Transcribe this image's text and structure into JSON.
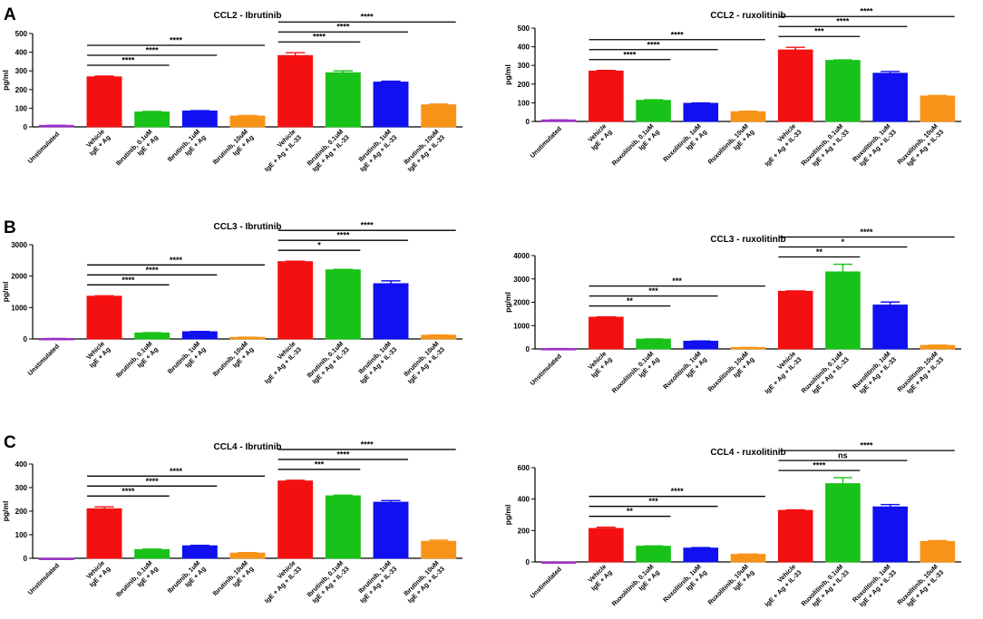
{
  "figure": {
    "panel_labels": [
      "A",
      "B",
      "C"
    ],
    "colors": {
      "purple": "#9b30c8",
      "red": "#f41010",
      "green": "#19c219",
      "blue": "#1010f0",
      "orange": "#f79418"
    }
  },
  "chart_data": [
    {
      "id": "ccl2-ibr",
      "type": "bar",
      "title": "CCL2 - Ibrutinib",
      "ylabel": "pg/ml",
      "ylim": [
        0,
        500
      ],
      "yticks": [
        0,
        100,
        200,
        300,
        400,
        500
      ],
      "categories": [
        [
          "Unstimulated"
        ],
        [
          "Vehicle",
          "IgE + Ag"
        ],
        [
          "Ibrutinib, 0.1uM",
          "IgE + Ag"
        ],
        [
          "Ibrutinib, 1uM",
          "IgE + Ag"
        ],
        [
          "Ibrutinib, 10uM",
          "IgE + Ag"
        ],
        [
          "Vehicle",
          "IgE + Ag + IL-33"
        ],
        [
          "Ibrutinib, 0.1uM",
          "IgE + Ag + IL-33"
        ],
        [
          "Ibrutinib, 1uM",
          "IgE + Ag + IL-33"
        ],
        [
          "Ibrutinib, 10uM",
          "IgE + Ag + IL-33"
        ]
      ],
      "values": [
        8,
        268,
        80,
        85,
        58,
        382,
        290,
        240,
        118
      ],
      "errors": [
        1,
        4,
        3,
        2,
        3,
        15,
        10,
        5,
        4
      ],
      "bar_colors": [
        "#9b30c8",
        "#f41010",
        "#19c219",
        "#1010f0",
        "#f79418",
        "#f41010",
        "#19c219",
        "#1010f0",
        "#f79418"
      ],
      "comparisons": [
        {
          "from": 1,
          "to": 2,
          "label": "****"
        },
        {
          "from": 1,
          "to": 3,
          "label": "****"
        },
        {
          "from": 1,
          "to": 4,
          "label": "****"
        },
        {
          "from": 5,
          "to": 6,
          "label": "****"
        },
        {
          "from": 5,
          "to": 7,
          "label": "****"
        },
        {
          "from": 5,
          "to": 8,
          "label": "****"
        }
      ]
    },
    {
      "id": "ccl2-rux",
      "type": "bar",
      "title": "CCL2 - ruxolitinib",
      "ylabel": "pg/ml",
      "ylim": [
        0,
        500
      ],
      "yticks": [
        0,
        100,
        200,
        300,
        400,
        500
      ],
      "categories": [
        [
          "Unstimulated"
        ],
        [
          "Vehicle",
          "IgE + Ag"
        ],
        [
          "Ruxolitinib, 0.1uM",
          "IgE + Ag"
        ],
        [
          "Ruxolitinib, 1uM",
          "IgE + Ag"
        ],
        [
          "Ruxolitinib, 10uM",
          "IgE + Ag"
        ],
        [
          "Vehicle",
          "IgE + Ag + IL-33"
        ],
        [
          "Ruxolitinib, 0.1uM",
          "IgE + Ag + IL-33"
        ],
        [
          "Ruxolitinib, 1uM",
          "IgE + Ag + IL-33"
        ],
        [
          "Ruxolitinib, 10uM",
          "IgE + Ag + IL-33"
        ]
      ],
      "values": [
        8,
        270,
        113,
        97,
        52,
        383,
        327,
        258,
        136
      ],
      "errors": [
        1,
        3,
        3,
        2,
        3,
        14,
        3,
        10,
        3
      ],
      "bar_colors": [
        "#9b30c8",
        "#f41010",
        "#19c219",
        "#1010f0",
        "#f79418",
        "#f41010",
        "#19c219",
        "#1010f0",
        "#f79418"
      ],
      "comparisons": [
        {
          "from": 1,
          "to": 2,
          "label": "****"
        },
        {
          "from": 1,
          "to": 3,
          "label": "****"
        },
        {
          "from": 1,
          "to": 4,
          "label": "****"
        },
        {
          "from": 5,
          "to": 6,
          "label": "***"
        },
        {
          "from": 5,
          "to": 7,
          "label": "****"
        },
        {
          "from": 5,
          "to": 8,
          "label": "****"
        }
      ]
    },
    {
      "id": "ccl3-ibr",
      "type": "bar",
      "title": "CCL3 - Ibrutinib",
      "ylabel": "pg/ml",
      "ylim": [
        0,
        3000
      ],
      "yticks": [
        0,
        1000,
        2000,
        3000
      ],
      "categories": [
        [
          "Unstimulated"
        ],
        [
          "Vehicle",
          "IgE + Ag"
        ],
        [
          "Ibrutinib, 0.1uM",
          "IgE + Ag"
        ],
        [
          "Ibrutinib, 1uM",
          "IgE + Ag"
        ],
        [
          "Ibrutinib, 10uM",
          "IgE + Ag"
        ],
        [
          "Vehicle",
          "IgE + Ag + IL-33"
        ],
        [
          "Ibrutinib, 0.1uM",
          "IgE + Ag + IL-33"
        ],
        [
          "Ibrutinib, 1uM",
          "IgE + Ag + IL-33"
        ],
        [
          "Ibrutinib, 10uM",
          "IgE + Ag + IL-33"
        ]
      ],
      "values": [
        15,
        1360,
        190,
        230,
        50,
        2460,
        2200,
        1760,
        120
      ],
      "errors": [
        2,
        15,
        8,
        8,
        5,
        15,
        15,
        90,
        8
      ],
      "bar_colors": [
        "#9b30c8",
        "#f41010",
        "#19c219",
        "#1010f0",
        "#f79418",
        "#f41010",
        "#19c219",
        "#1010f0",
        "#f79418"
      ],
      "comparisons": [
        {
          "from": 1,
          "to": 2,
          "label": "****"
        },
        {
          "from": 1,
          "to": 3,
          "label": "****"
        },
        {
          "from": 1,
          "to": 4,
          "label": "****"
        },
        {
          "from": 5,
          "to": 6,
          "label": "*"
        },
        {
          "from": 5,
          "to": 7,
          "label": "****"
        },
        {
          "from": 5,
          "to": 8,
          "label": "****"
        }
      ]
    },
    {
      "id": "ccl3-rux",
      "type": "bar",
      "title": "CCL3 - ruxolitinib",
      "ylabel": "pg/ml",
      "ylim": [
        0,
        4000
      ],
      "yticks": [
        0,
        1000,
        2000,
        3000,
        4000
      ],
      "categories": [
        [
          "Unstimulated"
        ],
        [
          "Vehicle",
          "IgE + Ag"
        ],
        [
          "Ruxolitinib, 0.1uM",
          "IgE + Ag"
        ],
        [
          "Ruxolitinib, 1uM",
          "IgE + Ag"
        ],
        [
          "Ruxolitinib, 10uM",
          "IgE + Ag"
        ],
        [
          "Vehicle",
          "IgE + Ag + IL-33"
        ],
        [
          "Ruxolitinib, 0.1uM",
          "IgE + Ag + IL-33"
        ],
        [
          "Ruxolitinib, 1uM",
          "IgE + Ag + IL-33"
        ],
        [
          "Ruxolitinib, 10uM",
          "IgE + Ag + IL-33"
        ]
      ],
      "values": [
        15,
        1360,
        420,
        330,
        60,
        2470,
        3300,
        1880,
        150
      ],
      "errors": [
        2,
        15,
        10,
        10,
        5,
        15,
        330,
        130,
        10
      ],
      "bar_colors": [
        "#9b30c8",
        "#f41010",
        "#19c219",
        "#1010f0",
        "#f79418",
        "#f41010",
        "#19c219",
        "#1010f0",
        "#f79418"
      ],
      "comparisons": [
        {
          "from": 1,
          "to": 2,
          "label": "**"
        },
        {
          "from": 1,
          "to": 3,
          "label": "***"
        },
        {
          "from": 1,
          "to": 4,
          "label": "***"
        },
        {
          "from": 5,
          "to": 6,
          "label": "**"
        },
        {
          "from": 5,
          "to": 7,
          "label": "*"
        },
        {
          "from": 5,
          "to": 8,
          "label": "****"
        }
      ]
    },
    {
      "id": "ccl4-ibr",
      "type": "bar",
      "title": "CCL4 - Ibrutinib",
      "ylabel": "pg/ml",
      "ylim": [
        0,
        400
      ],
      "yticks": [
        0,
        100,
        200,
        300,
        400
      ],
      "categories": [
        [
          "Unstimulated"
        ],
        [
          "Vehicle",
          "IgE + Ag"
        ],
        [
          "Ibrutinib, 0.1uM",
          "IgE + Ag"
        ],
        [
          "Ibrutinib, 1uM",
          "IgE + Ag"
        ],
        [
          "Ibrutinib, 10uM",
          "IgE + Ag"
        ],
        [
          "Vehicle",
          "IgE + Ag + IL-33"
        ],
        [
          "Ibrutinib, 0.1uM",
          "IgE + Ag + IL-33"
        ],
        [
          "Ibrutinib, 1uM",
          "IgE + Ag + IL-33"
        ],
        [
          "Ibrutinib, 10uM",
          "IgE + Ag + IL-33"
        ]
      ],
      "values": [
        0,
        210,
        37,
        53,
        22,
        328,
        265,
        238,
        72
      ],
      "errors": [
        0,
        8,
        2,
        2,
        2,
        3,
        3,
        7,
        5
      ],
      "bar_colors": [
        "#9b30c8",
        "#f41010",
        "#19c219",
        "#1010f0",
        "#f79418",
        "#f41010",
        "#19c219",
        "#1010f0",
        "#f79418"
      ],
      "comparisons": [
        {
          "from": 1,
          "to": 2,
          "label": "****"
        },
        {
          "from": 1,
          "to": 3,
          "label": "****"
        },
        {
          "from": 1,
          "to": 4,
          "label": "****"
        },
        {
          "from": 5,
          "to": 6,
          "label": "***"
        },
        {
          "from": 5,
          "to": 7,
          "label": "****"
        },
        {
          "from": 5,
          "to": 8,
          "label": "****"
        }
      ]
    },
    {
      "id": "ccl4-rux",
      "type": "bar",
      "title": "CCL4 - ruxolitinib",
      "ylabel": "pg/ml",
      "ylim": [
        0,
        600
      ],
      "yticks": [
        0,
        200,
        400,
        600
      ],
      "categories": [
        [
          "Unstimulated"
        ],
        [
          "Vehicle",
          "IgE + Ag"
        ],
        [
          "Ruxolitinib, 0.1uM",
          "IgE + Ag"
        ],
        [
          "Ruxolitinib, 1uM",
          "IgE + Ag"
        ],
        [
          "Ruxolitinib, 10uM",
          "IgE + Ag"
        ],
        [
          "Vehicle",
          "IgE + Ag + IL-33"
        ],
        [
          "Ruxolitinib, 0.1uM",
          "IgE + Ag + IL-33"
        ],
        [
          "Ruxolitinib, 1uM",
          "IgE + Ag + IL-33"
        ],
        [
          "Ruxolitinib, 10uM",
          "IgE + Ag + IL-33"
        ]
      ],
      "values": [
        0,
        213,
        100,
        88,
        48,
        328,
        498,
        350,
        130
      ],
      "errors": [
        0,
        8,
        2,
        3,
        2,
        3,
        38,
        15,
        6
      ],
      "bar_colors": [
        "#9b30c8",
        "#f41010",
        "#19c219",
        "#1010f0",
        "#f79418",
        "#f41010",
        "#19c219",
        "#1010f0",
        "#f79418"
      ],
      "comparisons": [
        {
          "from": 1,
          "to": 2,
          "label": "**"
        },
        {
          "from": 1,
          "to": 3,
          "label": "***"
        },
        {
          "from": 1,
          "to": 4,
          "label": "****"
        },
        {
          "from": 5,
          "to": 6,
          "label": "****"
        },
        {
          "from": 5,
          "to": 7,
          "label": "ns"
        },
        {
          "from": 5,
          "to": 8,
          "label": "****"
        }
      ]
    }
  ]
}
